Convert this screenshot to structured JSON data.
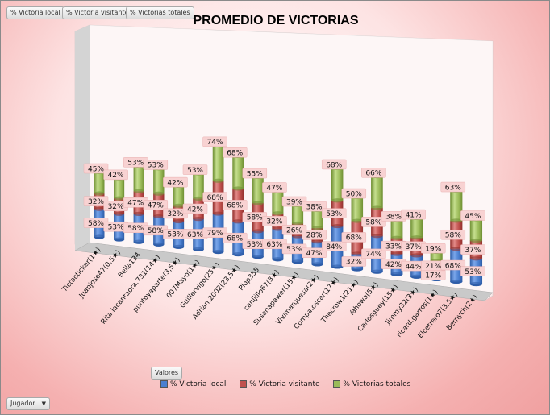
{
  "filter_buttons": [
    "% Victoria local",
    "% Victoria visitante",
    "% Victorias totales"
  ],
  "values_button": "Valores",
  "player_field_button": "Jugador",
  "colors": {
    "local": "#4a7fd0",
    "visitante": "#c0504d",
    "totales": "#9bbb59"
  },
  "chart_data": {
    "type": "bar",
    "subtype": "stacked-3d",
    "title": "PROMEDIO DE VICTORIAS",
    "legend_position": "bottom",
    "categories": [
      "Tictacticker(1★)",
      "Juanjose47(0,5★)",
      "Bella134",
      "Rita.lacantaora.731(14★)",
      "puntoyaparte(3,5★)",
      "007Mayo(1★)",
      "Guillervigo(25★)",
      "Adrian.2002(23,5★)",
      "Plop355",
      "canijillo67(3★)",
      "Susanapawer(15★)",
      "Vivimarquesa(2★)",
      "Compa.oscar(17★)",
      "Thecrow1(21★)",
      "Yahowa(5★)",
      "Carlosguey(15★)",
      "Jimmy32(3★)",
      "ricard.garros(1★)",
      "Elcetrero7(3,5★)",
      "Bernych(2★)"
    ],
    "series": [
      {
        "name": "% Victoria local",
        "values": [
          58,
          53,
          58,
          58,
          53,
          63,
          79,
          68,
          53,
          63,
          53,
          47,
          84,
          32,
          74,
          42,
          44,
          17,
          68,
          53
        ]
      },
      {
        "name": "% Victoria visitante",
        "values": [
          32,
          32,
          47,
          47,
          32,
          42,
          68,
          68,
          58,
          32,
          26,
          28,
          53,
          68,
          58,
          33,
          37,
          21,
          58,
          37
        ]
      },
      {
        "name": "% Victorias totales",
        "values": [
          45,
          42,
          53,
          53,
          42,
          53,
          74,
          68,
          55,
          47,
          39,
          38,
          68,
          50,
          66,
          38,
          41,
          19,
          63,
          45
        ]
      }
    ],
    "value_labels": [
      [
        "58%",
        "53%",
        "58%",
        "58%",
        "53%",
        "63%",
        "79%",
        "68%",
        "53%",
        "63%",
        "53%",
        "47%",
        "84%",
        "32%",
        "74%",
        "42%",
        "44%",
        "17%",
        "68%",
        "53%"
      ],
      [
        "32%",
        "32%",
        "47%",
        "47%",
        "32%",
        "42%",
        "68%",
        "68%",
        "58%",
        "32%",
        "26%",
        "28%",
        "53%",
        "68%",
        "58%",
        "33%",
        "37%",
        "21%",
        "58%",
        "37%"
      ],
      [
        "45%",
        "42%",
        "53%",
        "53%",
        "42%",
        "53%",
        "74%",
        "68%",
        "55%",
        "47%",
        "39%",
        "38%",
        "68%",
        "50%",
        "66%",
        "38%",
        "41%",
        "19%",
        "63%",
        "45%"
      ]
    ]
  }
}
